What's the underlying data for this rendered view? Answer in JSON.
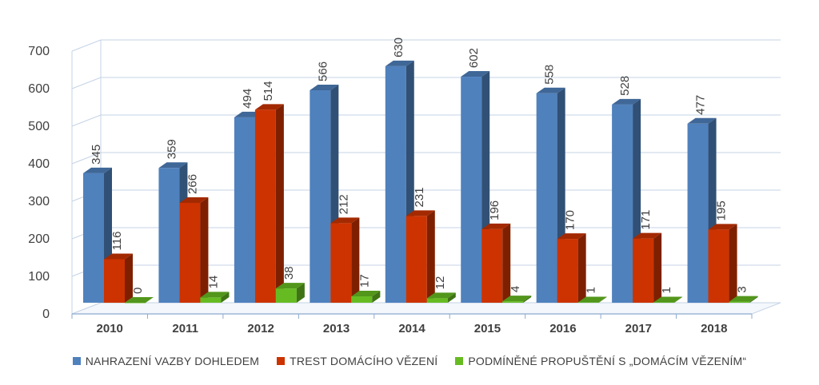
{
  "chart_data": {
    "type": "bar",
    "categories": [
      "2010",
      "2011",
      "2012",
      "2013",
      "2014",
      "2015",
      "2016",
      "2017",
      "2018"
    ],
    "series": [
      {
        "name": "NAHRAZENÍ VAZBY DOHLEDEM",
        "color": "#4F81BD",
        "values": [
          345,
          359,
          494,
          566,
          630,
          602,
          558,
          528,
          477
        ]
      },
      {
        "name": "TREST DOMÁCÍHO VĚZENÍ",
        "color": "#CC3300",
        "values": [
          116,
          266,
          514,
          212,
          231,
          196,
          170,
          171,
          195
        ]
      },
      {
        "name": "PODMÍNĚNÉ PROPUŠTĚNÍ S „DOMÁCÍM VĚZENÍM“",
        "color": "#66BB22",
        "values": [
          0,
          14,
          38,
          17,
          12,
          4,
          1,
          1,
          3
        ]
      }
    ],
    "yticks": [
      0,
      100,
      200,
      300,
      400,
      500,
      600,
      700
    ],
    "ylim": [
      0,
      700
    ],
    "grid": true,
    "three_d": true,
    "data_labels": true,
    "legend": "bottom-center"
  }
}
